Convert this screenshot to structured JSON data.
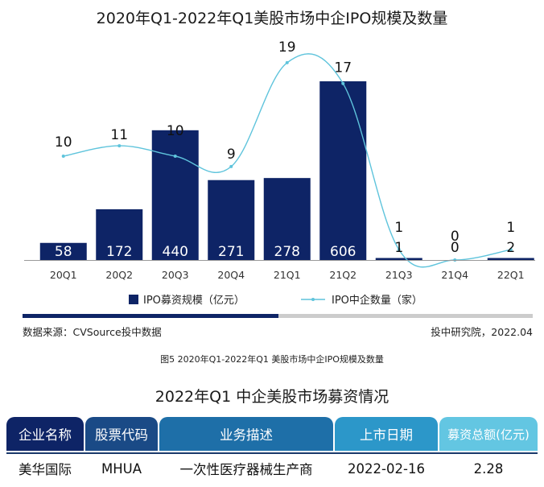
{
  "chart_data": {
    "type": "bar+line",
    "title": "2020年Q1-2022年Q1美股市场中企IPO规模及数量",
    "categories": [
      "20Q1",
      "20Q2",
      "20Q3",
      "20Q4",
      "21Q1",
      "21Q2",
      "21Q3",
      "21Q4",
      "22Q1"
    ],
    "series": [
      {
        "name": "IPO募资规模（亿元）",
        "type": "bar",
        "color": "#0e2466",
        "values": [
          58,
          172,
          440,
          271,
          278,
          606,
          1,
          0,
          2
        ],
        "labels": [
          "58",
          "172",
          "440",
          "271",
          "278",
          "606",
          "1",
          "0",
          "2"
        ]
      },
      {
        "name": "IPO中企数量（家）",
        "type": "line",
        "color": "#5fc4dc",
        "values": [
          10,
          11,
          10,
          9,
          19,
          17,
          1,
          0,
          1
        ],
        "labels": [
          "10",
          "11",
          "10",
          "9",
          "19",
          "17",
          "1",
          "0",
          "1"
        ]
      }
    ],
    "legend_position": "bottom",
    "grid": false
  },
  "source": {
    "left": "数据来源：CVSource投中数据",
    "right": "投中研究院，2022.04"
  },
  "caption": "图5 2020年Q1-2022年Q1 美股市场中企IPO规模及数量",
  "table": {
    "title": "2022年Q1 中企美股市场募资情况",
    "headers": [
      "企业名称",
      "股票代码",
      "业务描述",
      "上市日期",
      "募资总额(亿元)"
    ],
    "header_colors": [
      "#0e2466",
      "#1a4a86",
      "#1e6fa8",
      "#2c97c9",
      "#63c6e2"
    ],
    "rows": [
      [
        "美华国际",
        "MHUA",
        "一次性医疗器械生产商",
        "2022-02-16",
        "2.28"
      ]
    ]
  },
  "colors": {
    "divider_dark": "#0e2466",
    "divider_light": "#cccccc",
    "axis": "#333333"
  }
}
